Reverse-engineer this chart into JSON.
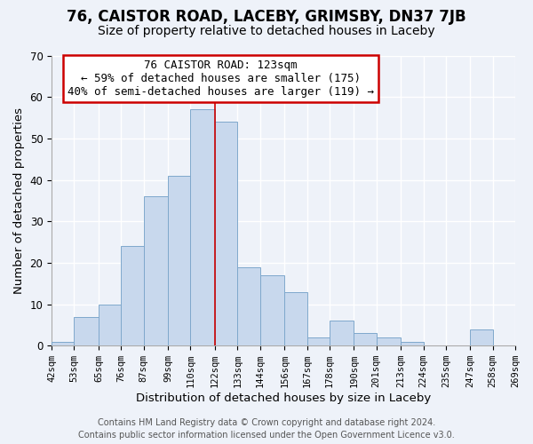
{
  "title": "76, CAISTOR ROAD, LACEBY, GRIMSBY, DN37 7JB",
  "subtitle": "Size of property relative to detached houses in Laceby",
  "xlabel": "Distribution of detached houses by size in Laceby",
  "ylabel": "Number of detached properties",
  "bin_edges": [
    42,
    53,
    65,
    76,
    87,
    99,
    110,
    122,
    133,
    144,
    156,
    167,
    178,
    190,
    201,
    213,
    224,
    235,
    247,
    258,
    269
  ],
  "bar_heights": [
    1,
    7,
    10,
    24,
    36,
    41,
    57,
    54,
    19,
    17,
    13,
    2,
    6,
    3,
    2,
    1,
    0,
    0,
    4,
    0
  ],
  "bar_color": "#c8d8ed",
  "bar_edgecolor": "#7fa8cc",
  "property_line_x": 122,
  "property_line_color": "#cc0000",
  "tick_labels": [
    "42sqm",
    "53sqm",
    "65sqm",
    "76sqm",
    "87sqm",
    "99sqm",
    "110sqm",
    "122sqm",
    "133sqm",
    "144sqm",
    "156sqm",
    "167sqm",
    "178sqm",
    "190sqm",
    "201sqm",
    "213sqm",
    "224sqm",
    "235sqm",
    "247sqm",
    "258sqm",
    "269sqm"
  ],
  "annotation_title": "76 CAISTOR ROAD: 123sqm",
  "annotation_line1": "← 59% of detached houses are smaller (175)",
  "annotation_line2": "40% of semi-detached houses are larger (119) →",
  "annotation_box_color": "#ffffff",
  "annotation_box_edgecolor": "#cc0000",
  "ylim": [
    0,
    70
  ],
  "yticks": [
    0,
    10,
    20,
    30,
    40,
    50,
    60,
    70
  ],
  "footer1": "Contains HM Land Registry data © Crown copyright and database right 2024.",
  "footer2": "Contains public sector information licensed under the Open Government Licence v3.0.",
  "background_color": "#eef2f9",
  "plot_bg_color": "#eef2f9",
  "grid_color": "#ffffff",
  "title_fontsize": 12,
  "subtitle_fontsize": 10,
  "axis_label_fontsize": 9.5,
  "tick_fontsize": 7.5,
  "annotation_fontsize": 9,
  "footer_fontsize": 7
}
